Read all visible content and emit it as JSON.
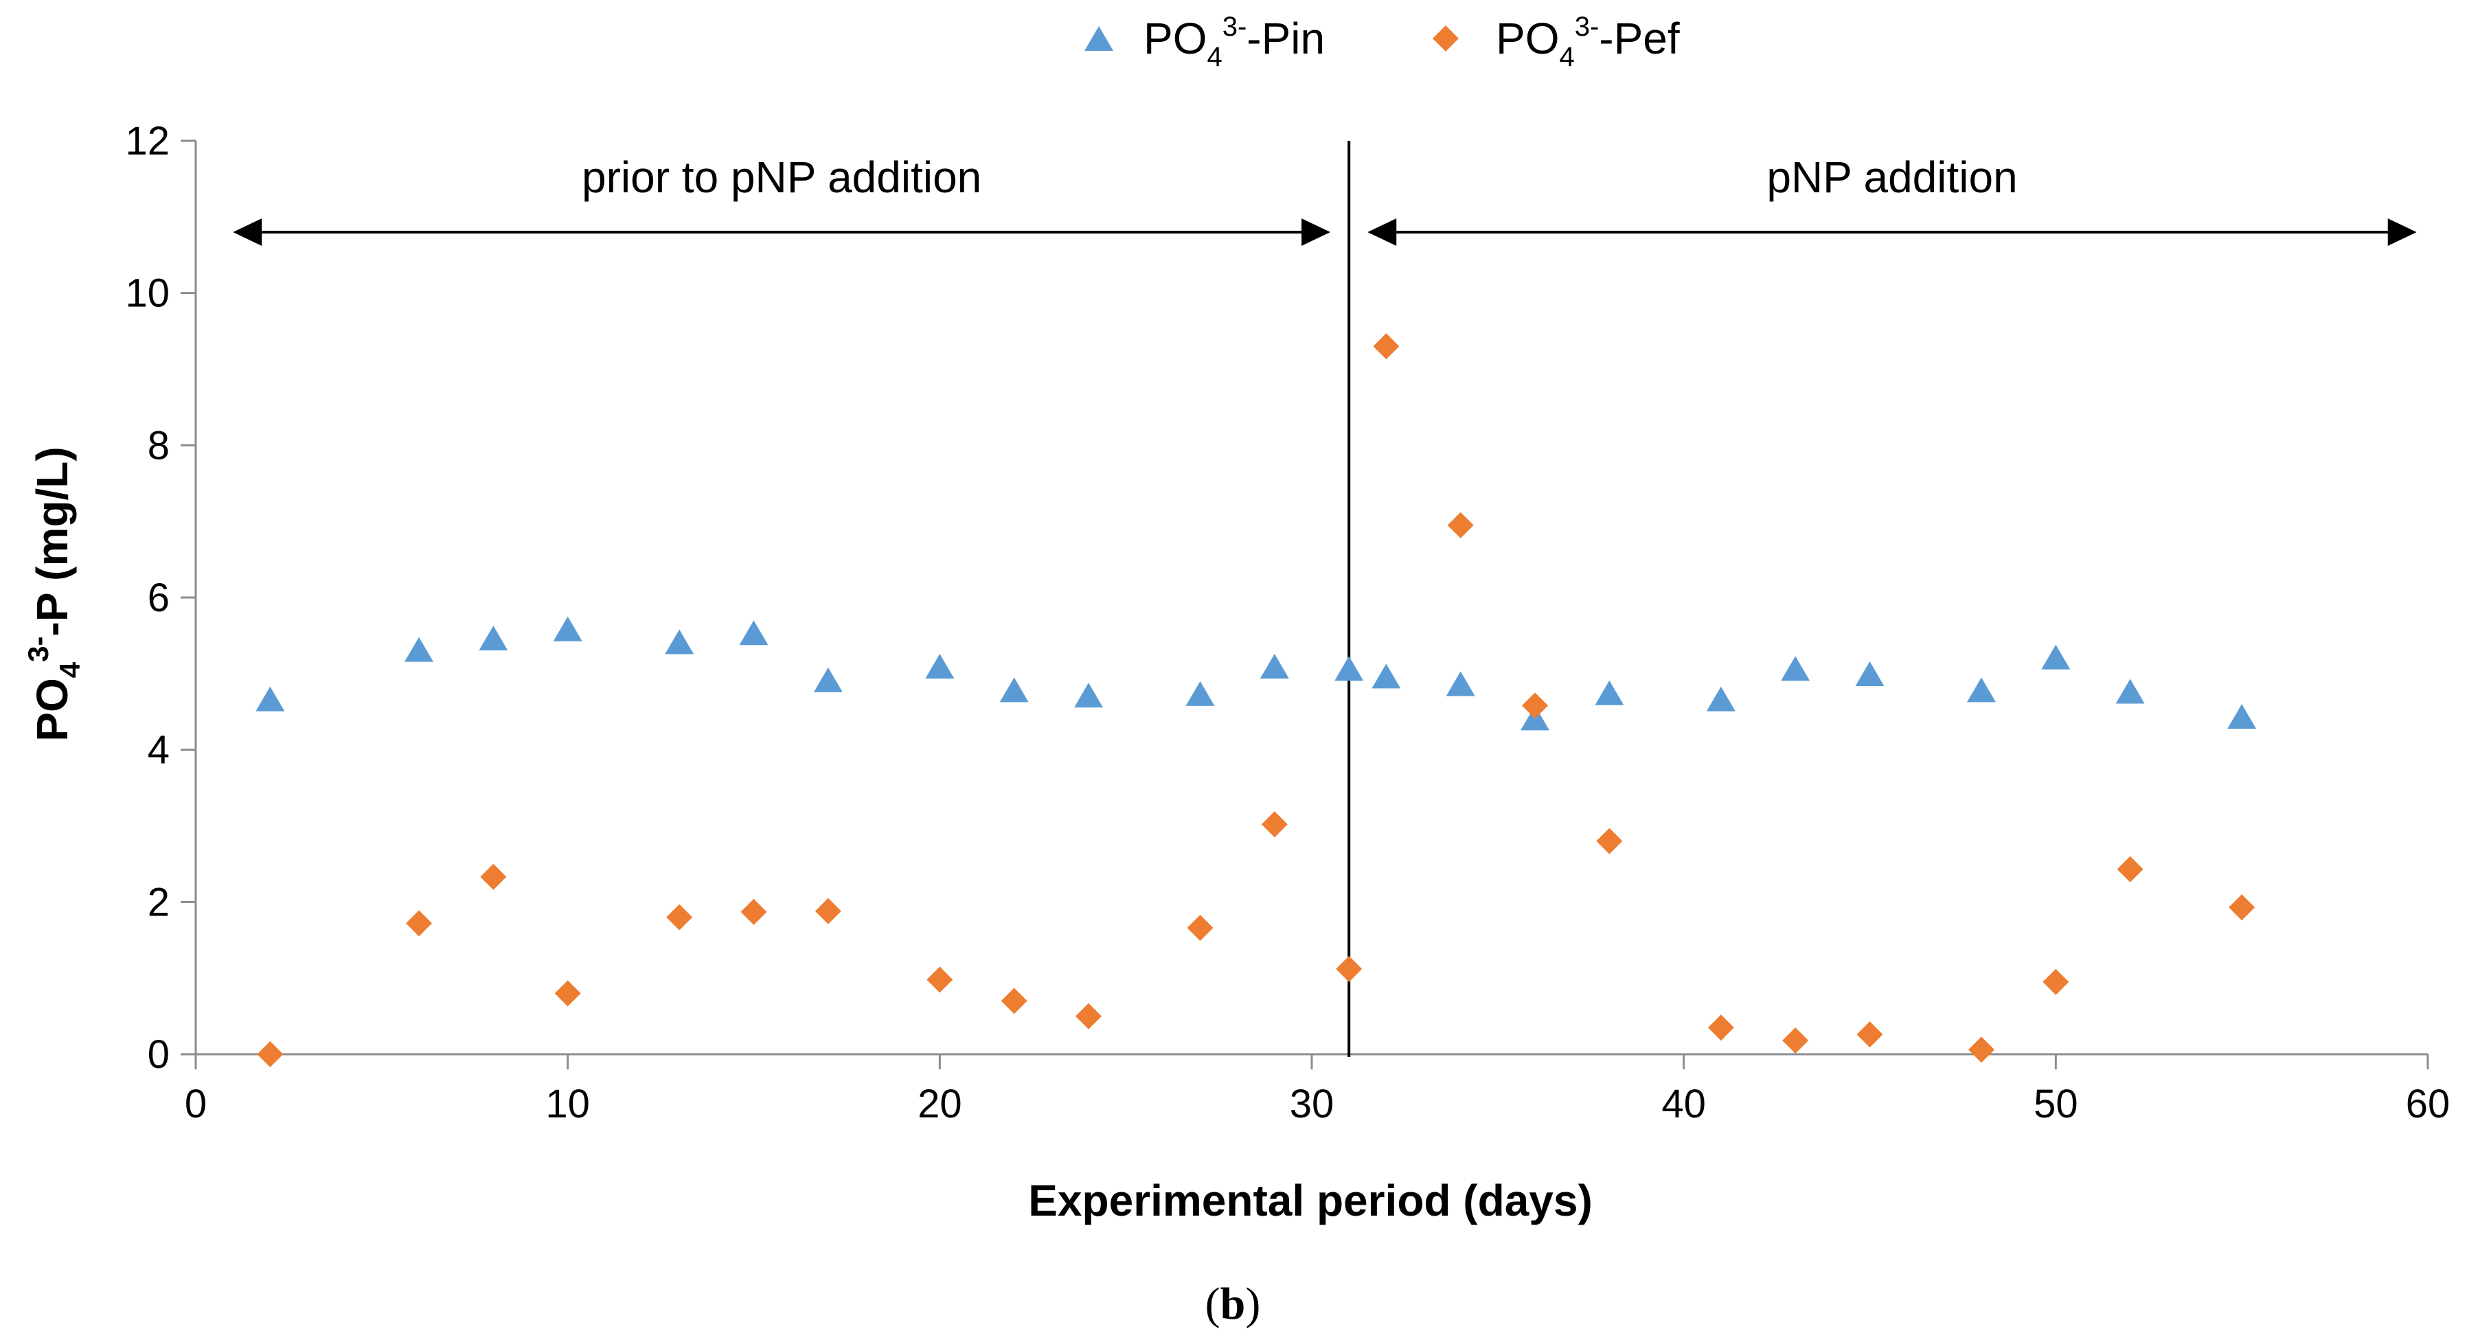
{
  "chart_data": {
    "type": "scatter",
    "title": "",
    "xlabel": "Experimental period (days)",
    "ylabel": {
      "main": "PO",
      "sub": "4",
      "sup": "3-",
      "rest": "-P (mg/L)"
    },
    "xlim": [
      0,
      60
    ],
    "ylim": [
      0,
      12
    ],
    "xticks": [
      0,
      10,
      20,
      30,
      40,
      50,
      60
    ],
    "yticks": [
      0,
      2,
      4,
      6,
      8,
      10,
      12
    ],
    "grid": false,
    "legend_position": "top-center",
    "series": [
      {
        "name": {
          "main": "PO",
          "sub": "4",
          "sup": "3-",
          "rest": "-Pin"
        },
        "marker": "triangle",
        "color": "#5B9BD5",
        "points": [
          [
            2,
            4.65
          ],
          [
            6,
            5.3
          ],
          [
            8,
            5.45
          ],
          [
            10,
            5.57
          ],
          [
            13,
            5.4
          ],
          [
            15,
            5.52
          ],
          [
            17,
            4.9
          ],
          [
            20,
            5.08
          ],
          [
            22,
            4.77
          ],
          [
            24,
            4.7
          ],
          [
            27,
            4.72
          ],
          [
            29,
            5.08
          ],
          [
            31,
            5.05
          ],
          [
            32,
            4.95
          ],
          [
            34,
            4.85
          ],
          [
            36,
            4.4
          ],
          [
            38,
            4.73
          ],
          [
            41,
            4.65
          ],
          [
            43,
            5.05
          ],
          [
            45,
            4.98
          ],
          [
            48,
            4.77
          ],
          [
            50,
            5.2
          ],
          [
            52,
            4.75
          ],
          [
            55,
            4.42
          ]
        ]
      },
      {
        "name": {
          "main": "PO",
          "sub": "4",
          "sup": "3-",
          "rest": "-Pef"
        },
        "marker": "diamond",
        "color": "#ED7D31",
        "points": [
          [
            2,
            0.0
          ],
          [
            6,
            1.72
          ],
          [
            8,
            2.33
          ],
          [
            10,
            0.8
          ],
          [
            13,
            1.8
          ],
          [
            15,
            1.87
          ],
          [
            17,
            1.88
          ],
          [
            20,
            0.98
          ],
          [
            22,
            0.7
          ],
          [
            24,
            0.5
          ],
          [
            27,
            1.66
          ],
          [
            29,
            3.02
          ],
          [
            31,
            1.12
          ],
          [
            32,
            9.3
          ],
          [
            34,
            6.95
          ],
          [
            36,
            4.58
          ],
          [
            38,
            2.8
          ],
          [
            41,
            0.35
          ],
          [
            43,
            0.18
          ],
          [
            45,
            0.26
          ],
          [
            48,
            0.06
          ],
          [
            50,
            0.95
          ],
          [
            52,
            2.43
          ],
          [
            55,
            1.93
          ]
        ]
      }
    ],
    "annotations": {
      "divider_x": 31,
      "phases": [
        {
          "label": "prior to pNP addition",
          "x_start": 1,
          "x_end": 30.5,
          "y": 10.8
        },
        {
          "label": "pNP addition",
          "x_start": 31.5,
          "x_end": 59.7,
          "y": 10.8
        }
      ]
    },
    "panel_label": {
      "open": "(",
      "letter": "b",
      "close": ")"
    }
  }
}
